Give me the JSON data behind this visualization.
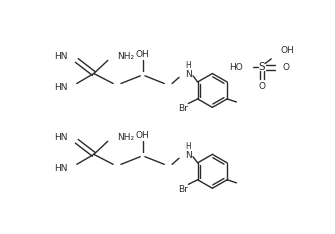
{
  "bg_color": "#ffffff",
  "line_color": "#2a2a2a",
  "font_family": "Arial",
  "figsize": [
    3.35,
    2.34
  ],
  "dpi": 100,
  "fs": 6.5,
  "lw": 1.0,
  "xlim": [
    0,
    335
  ],
  "ylim": [
    0,
    234
  ]
}
